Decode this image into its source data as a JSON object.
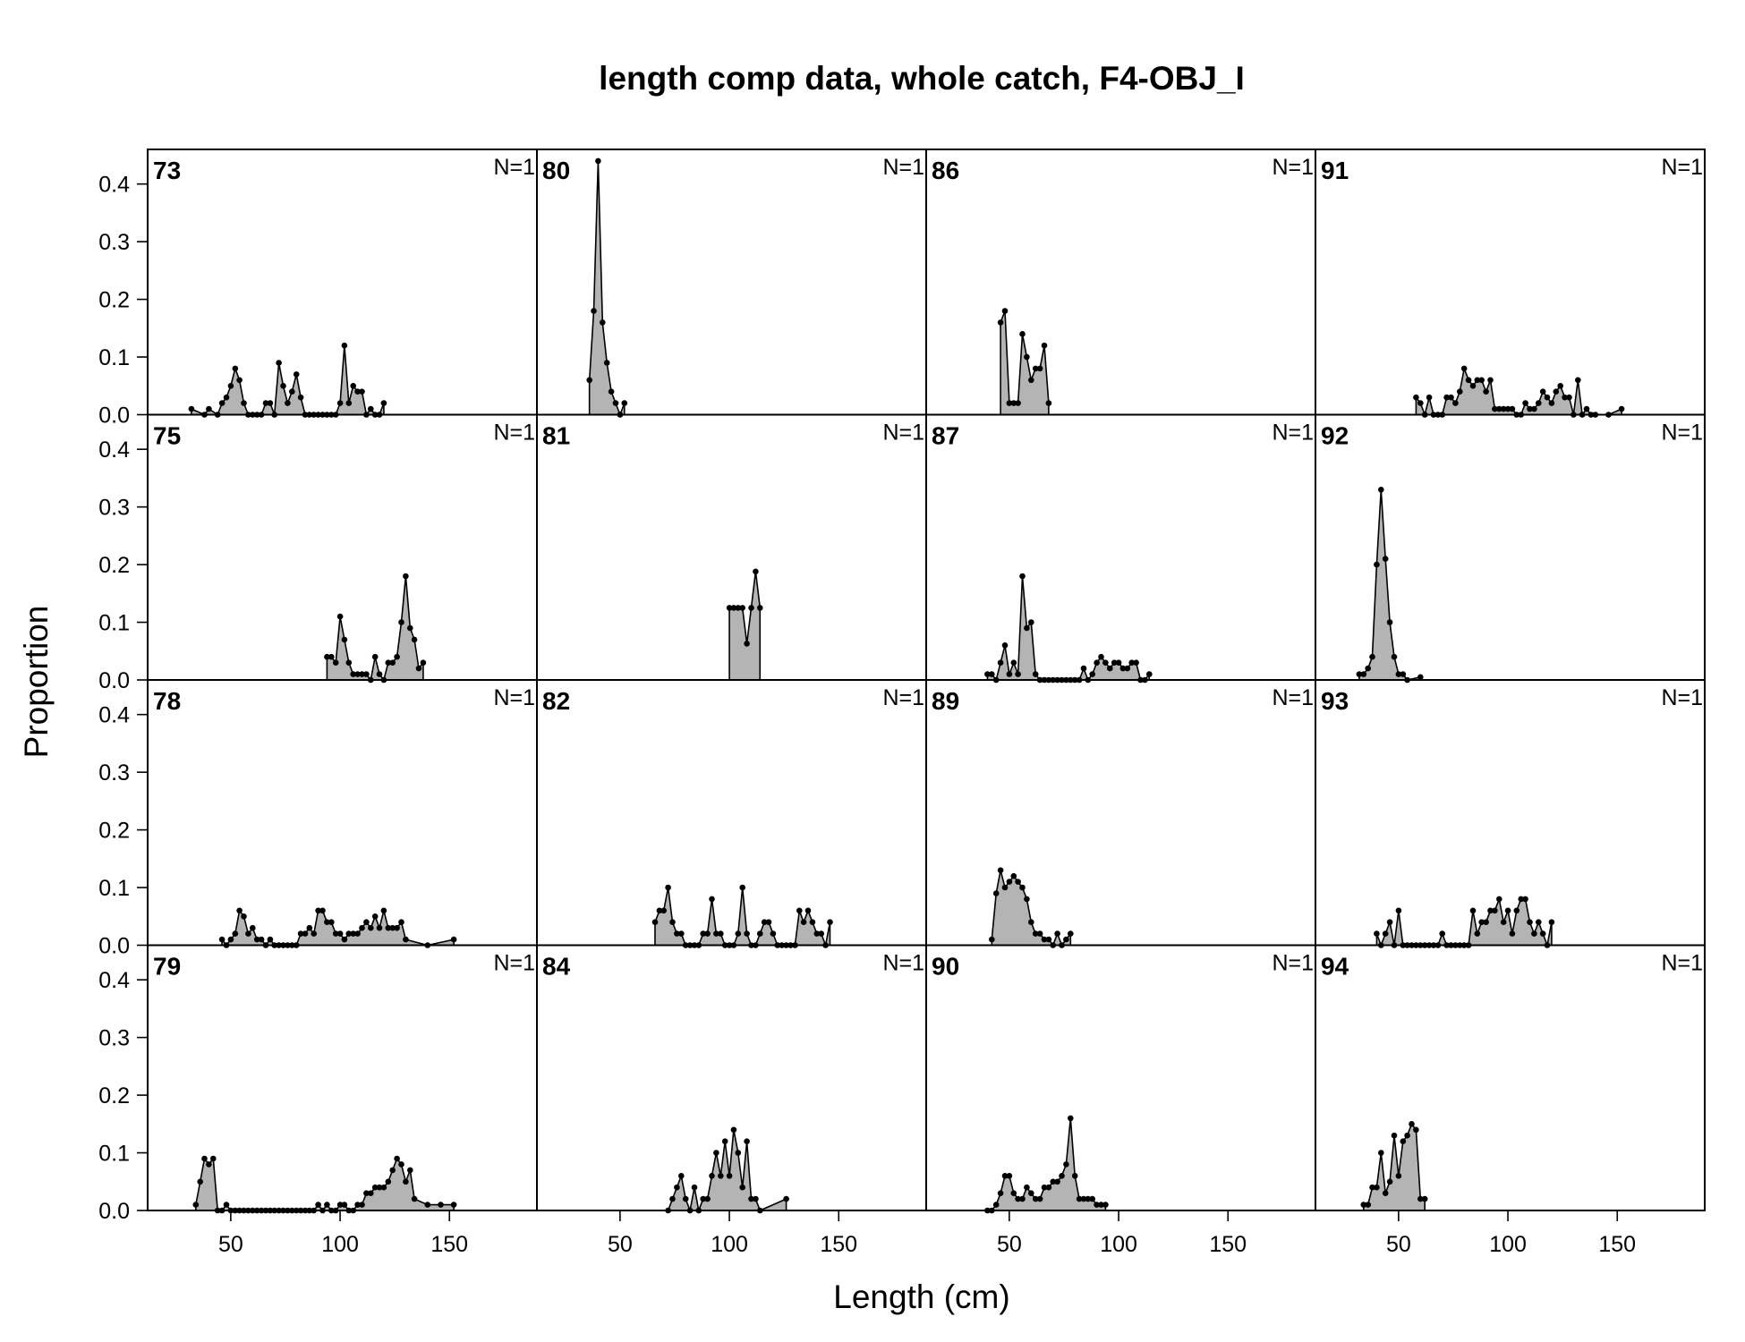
{
  "chart_data": {
    "type": "area",
    "title": "length comp data, whole catch, F4-OBJ_I",
    "xlabel": "Length (cm)",
    "ylabel": "Proportion",
    "xlim": [
      12,
      190
    ],
    "ylim": [
      0,
      0.46
    ],
    "xticks": [
      50,
      100,
      150
    ],
    "yticks": [
      "0.0",
      "0.1",
      "0.2",
      "0.3",
      "0.4"
    ],
    "colors": {
      "fill": "#b4b4b4",
      "line": "#000000",
      "point": "#000000"
    },
    "layout": {
      "columns": 4,
      "rows": 4,
      "order": "column-major"
    },
    "panels": [
      {
        "label": "73",
        "n": "N=1",
        "x": [
          32,
          38,
          40,
          44,
          46,
          48,
          50,
          52,
          54,
          56,
          58,
          60,
          62,
          64,
          66,
          68,
          70,
          72,
          74,
          76,
          78,
          80,
          82,
          84,
          86,
          88,
          90,
          92,
          94,
          96,
          98,
          100,
          102,
          104,
          106,
          108,
          110,
          112,
          114,
          116,
          118,
          120
        ],
        "y": [
          0.01,
          0,
          0.01,
          0,
          0.02,
          0.03,
          0.05,
          0.08,
          0.06,
          0.02,
          0,
          0,
          0,
          0,
          0.02,
          0.02,
          0,
          0.09,
          0.05,
          0.02,
          0.04,
          0.07,
          0.03,
          0,
          0,
          0,
          0,
          0,
          0,
          0,
          0,
          0.02,
          0.12,
          0.02,
          0.05,
          0.04,
          0.04,
          0,
          0.01,
          0,
          0,
          0.02
        ]
      },
      {
        "label": "75",
        "n": "N=1",
        "x": [
          94,
          96,
          98,
          100,
          102,
          104,
          106,
          108,
          110,
          112,
          114,
          116,
          118,
          120,
          122,
          124,
          126,
          128,
          130,
          132,
          134,
          136,
          138
        ],
        "y": [
          0.04,
          0.04,
          0.03,
          0.11,
          0.07,
          0.03,
          0.01,
          0.01,
          0.01,
          0.01,
          0,
          0.04,
          0.01,
          0,
          0.03,
          0.03,
          0.04,
          0.1,
          0.18,
          0.09,
          0.07,
          0.02,
          0.03
        ]
      },
      {
        "label": "78",
        "n": "N=1",
        "x": [
          46,
          48,
          50,
          52,
          54,
          56,
          58,
          60,
          62,
          64,
          66,
          68,
          70,
          72,
          74,
          76,
          78,
          80,
          82,
          84,
          86,
          88,
          90,
          92,
          94,
          96,
          98,
          100,
          102,
          104,
          106,
          108,
          110,
          112,
          114,
          116,
          118,
          120,
          122,
          124,
          126,
          128,
          130,
          140,
          152
        ],
        "y": [
          0.01,
          0,
          0.01,
          0.02,
          0.06,
          0.05,
          0.02,
          0.03,
          0.01,
          0.01,
          0,
          0.01,
          0,
          0,
          0,
          0,
          0,
          0,
          0.02,
          0.02,
          0.03,
          0.02,
          0.06,
          0.06,
          0.04,
          0.04,
          0.02,
          0.02,
          0.01,
          0.02,
          0.02,
          0.02,
          0.03,
          0.04,
          0.03,
          0.05,
          0.03,
          0.06,
          0.03,
          0.03,
          0.03,
          0.04,
          0.01,
          0,
          0.01
        ]
      },
      {
        "label": "79",
        "n": "N=1",
        "x": [
          34,
          36,
          38,
          40,
          42,
          44,
          46,
          48,
          50,
          52,
          54,
          56,
          58,
          60,
          62,
          64,
          66,
          68,
          70,
          72,
          74,
          76,
          78,
          80,
          82,
          84,
          86,
          88,
          90,
          92,
          94,
          96,
          98,
          100,
          102,
          104,
          106,
          108,
          110,
          112,
          114,
          116,
          118,
          120,
          122,
          124,
          126,
          128,
          130,
          132,
          134,
          140,
          146,
          152
        ],
        "y": [
          0.01,
          0.05,
          0.09,
          0.08,
          0.09,
          0,
          0,
          0.01,
          0,
          0,
          0,
          0,
          0,
          0,
          0,
          0,
          0,
          0,
          0,
          0,
          0,
          0,
          0,
          0,
          0,
          0,
          0,
          0,
          0.01,
          0,
          0.01,
          0,
          0,
          0.01,
          0.01,
          0,
          0,
          0.01,
          0.01,
          0.03,
          0.03,
          0.04,
          0.04,
          0.04,
          0.05,
          0.07,
          0.09,
          0.08,
          0.05,
          0.07,
          0.02,
          0.01,
          0.01,
          0.01
        ]
      },
      {
        "label": "80",
        "n": "N=1",
        "x": [
          36,
          38,
          40,
          42,
          44,
          46,
          48,
          50,
          52
        ],
        "y": [
          0.06,
          0.18,
          0.44,
          0.16,
          0.09,
          0.04,
          0.02,
          0,
          0.02
        ]
      },
      {
        "label": "81",
        "n": "N=1",
        "x": [
          100,
          102,
          104,
          106,
          108,
          110,
          112,
          114
        ],
        "y": [
          0.125,
          0.125,
          0.125,
          0.125,
          0.063,
          0.125,
          0.188,
          0.125
        ]
      },
      {
        "label": "82",
        "n": "N=1",
        "x": [
          66,
          68,
          70,
          72,
          74,
          76,
          78,
          80,
          82,
          84,
          86,
          88,
          90,
          92,
          94,
          96,
          98,
          100,
          102,
          104,
          106,
          108,
          110,
          112,
          114,
          116,
          118,
          120,
          122,
          124,
          126,
          128,
          130,
          132,
          134,
          136,
          138,
          140,
          142,
          144,
          146
        ],
        "y": [
          0.04,
          0.06,
          0.06,
          0.1,
          0.04,
          0.02,
          0.02,
          0,
          0,
          0,
          0,
          0.02,
          0.02,
          0.08,
          0.02,
          0.02,
          0,
          0,
          0,
          0.02,
          0.1,
          0.02,
          0,
          0,
          0.02,
          0.04,
          0.04,
          0.02,
          0,
          0,
          0,
          0,
          0,
          0.06,
          0.04,
          0.06,
          0.04,
          0.02,
          0.02,
          0,
          0.04
        ]
      },
      {
        "label": "84",
        "n": "N=1",
        "x": [
          72,
          74,
          76,
          78,
          80,
          82,
          84,
          86,
          88,
          90,
          92,
          94,
          96,
          98,
          100,
          102,
          104,
          106,
          108,
          110,
          112,
          114,
          126
        ],
        "y": [
          0,
          0.02,
          0.04,
          0.06,
          0.02,
          0,
          0.04,
          0,
          0.02,
          0.02,
          0.06,
          0.1,
          0.06,
          0.12,
          0.06,
          0.14,
          0.1,
          0.04,
          0.12,
          0.02,
          0.02,
          0,
          0.02
        ]
      },
      {
        "label": "86",
        "n": "N=1",
        "x": [
          46,
          48,
          50,
          52,
          54,
          56,
          58,
          60,
          62,
          64,
          66,
          68
        ],
        "y": [
          0.16,
          0.18,
          0.02,
          0.02,
          0.02,
          0.14,
          0.1,
          0.06,
          0.08,
          0.08,
          0.12,
          0.02
        ]
      },
      {
        "label": "87",
        "n": "N=1",
        "x": [
          40,
          42,
          44,
          46,
          48,
          50,
          52,
          54,
          56,
          58,
          60,
          62,
          64,
          66,
          68,
          70,
          72,
          74,
          76,
          78,
          80,
          82,
          84,
          86,
          88,
          90,
          92,
          94,
          96,
          98,
          100,
          102,
          104,
          106,
          108,
          110,
          112,
          114
        ],
        "y": [
          0.01,
          0.01,
          0,
          0.03,
          0.06,
          0.01,
          0.03,
          0.01,
          0.18,
          0.09,
          0.1,
          0.01,
          0,
          0,
          0,
          0,
          0,
          0,
          0,
          0,
          0,
          0,
          0.02,
          0,
          0.01,
          0.03,
          0.04,
          0.03,
          0.02,
          0.03,
          0.03,
          0.02,
          0.02,
          0.03,
          0.03,
          0,
          0,
          0.01
        ]
      },
      {
        "label": "89",
        "n": "N=1",
        "x": [
          42,
          44,
          46,
          48,
          50,
          52,
          54,
          56,
          58,
          60,
          62,
          64,
          66,
          68,
          70,
          72,
          74,
          76,
          78
        ],
        "y": [
          0.01,
          0.09,
          0.13,
          0.1,
          0.11,
          0.12,
          0.11,
          0.1,
          0.08,
          0.04,
          0.02,
          0.02,
          0.01,
          0.01,
          0,
          0.02,
          0,
          0.01,
          0.02
        ]
      },
      {
        "label": "90",
        "n": "N=1",
        "x": [
          40,
          42,
          44,
          46,
          48,
          50,
          52,
          54,
          56,
          58,
          60,
          62,
          64,
          66,
          68,
          70,
          72,
          74,
          76,
          78,
          80,
          82,
          84,
          86,
          88,
          90,
          92,
          94
        ],
        "y": [
          0,
          0,
          0.01,
          0.03,
          0.06,
          0.06,
          0.03,
          0.02,
          0.02,
          0.04,
          0.03,
          0.02,
          0.02,
          0.04,
          0.04,
          0.05,
          0.05,
          0.06,
          0.08,
          0.16,
          0.06,
          0.02,
          0.02,
          0.02,
          0.02,
          0.01,
          0.01,
          0.01
        ]
      },
      {
        "label": "91",
        "n": "N=1",
        "x": [
          58,
          60,
          62,
          64,
          66,
          68,
          70,
          72,
          74,
          76,
          78,
          80,
          82,
          84,
          86,
          88,
          90,
          92,
          94,
          96,
          98,
          100,
          102,
          104,
          106,
          108,
          110,
          112,
          114,
          116,
          118,
          120,
          122,
          124,
          126,
          128,
          130,
          132,
          134,
          136,
          138,
          140,
          146,
          152
        ],
        "y": [
          0.03,
          0.02,
          0,
          0.03,
          0,
          0,
          0,
          0.03,
          0.03,
          0.02,
          0.04,
          0.08,
          0.06,
          0.05,
          0.06,
          0.06,
          0.04,
          0.06,
          0.01,
          0.01,
          0.01,
          0.01,
          0.01,
          0,
          0,
          0.02,
          0.01,
          0.01,
          0.02,
          0.04,
          0.03,
          0.02,
          0.04,
          0.05,
          0.03,
          0.03,
          0,
          0.06,
          0,
          0.01,
          0,
          0,
          0,
          0.01
        ]
      },
      {
        "label": "92",
        "n": "N=1",
        "x": [
          32,
          34,
          36,
          38,
          40,
          42,
          44,
          46,
          48,
          50,
          52,
          54,
          60
        ],
        "y": [
          0.01,
          0.01,
          0.02,
          0.04,
          0.2,
          0.33,
          0.21,
          0.1,
          0.04,
          0.01,
          0.01,
          0,
          0.005
        ]
      },
      {
        "label": "93",
        "n": "N=1",
        "x": [
          40,
          42,
          44,
          46,
          48,
          50,
          52,
          54,
          56,
          58,
          60,
          62,
          64,
          66,
          68,
          70,
          72,
          74,
          76,
          78,
          80,
          82,
          84,
          86,
          88,
          90,
          92,
          94,
          96,
          98,
          100,
          102,
          104,
          106,
          108,
          110,
          112,
          114,
          116,
          118,
          120
        ],
        "y": [
          0.02,
          0,
          0.02,
          0.04,
          0,
          0.06,
          0,
          0,
          0,
          0,
          0,
          0,
          0,
          0,
          0,
          0.02,
          0,
          0,
          0,
          0,
          0,
          0,
          0.06,
          0.02,
          0.04,
          0.04,
          0.06,
          0.06,
          0.08,
          0.04,
          0.06,
          0.02,
          0.06,
          0.08,
          0.08,
          0.04,
          0.02,
          0.04,
          0.02,
          0,
          0.04
        ]
      },
      {
        "label": "94",
        "n": "N=1",
        "x": [
          34,
          36,
          38,
          40,
          42,
          44,
          46,
          48,
          50,
          52,
          54,
          56,
          58,
          60,
          62
        ],
        "y": [
          0.01,
          0.01,
          0.04,
          0.04,
          0.1,
          0.03,
          0.05,
          0.13,
          0.06,
          0.12,
          0.13,
          0.15,
          0.14,
          0.02,
          0.02
        ]
      }
    ]
  }
}
